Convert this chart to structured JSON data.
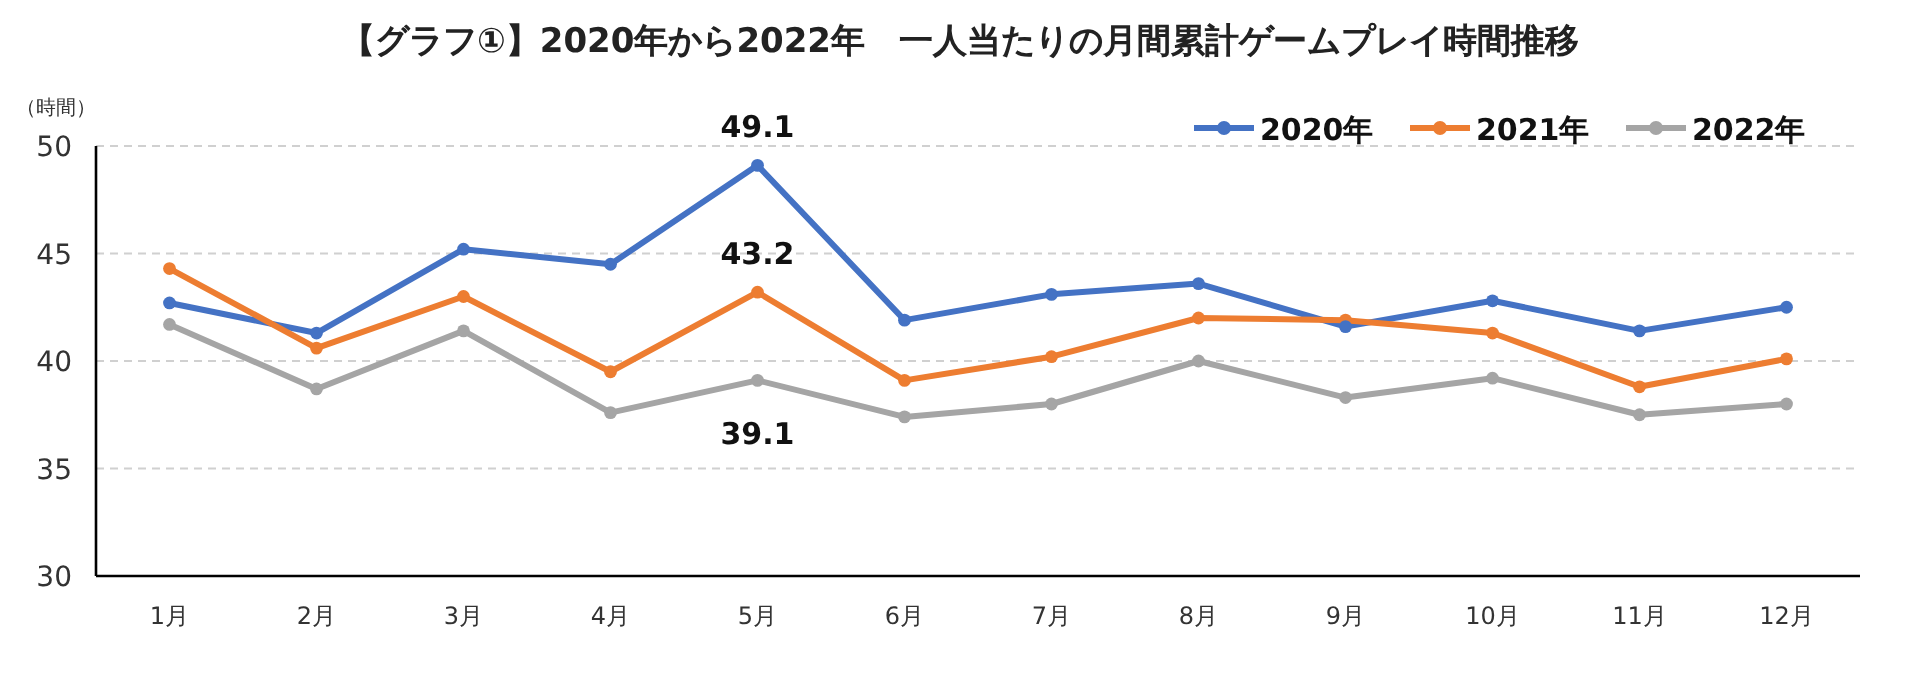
{
  "chart_data": {
    "type": "line",
    "title": "【グラフ①】2020年から2022年　一人当たりの月間累計ゲームプレイ時間推移",
    "ylabel": "（時間）",
    "categories": [
      "1月",
      "2月",
      "3月",
      "4月",
      "5月",
      "6月",
      "7月",
      "8月",
      "9月",
      "10月",
      "11月",
      "12月"
    ],
    "ylim": [
      30,
      50
    ],
    "yticks": [
      30,
      35,
      40,
      45,
      50
    ],
    "grid": "y",
    "legend": "top right",
    "marker": "circle",
    "line_style": "solid",
    "series": [
      {
        "name": "2020年",
        "color": "#4472c4",
        "values": [
          42.7,
          41.3,
          45.2,
          44.5,
          49.1,
          41.9,
          43.1,
          43.6,
          41.6,
          42.8,
          41.4,
          42.5
        ],
        "value_labels": [
          null,
          null,
          null,
          null,
          "49.1",
          null,
          null,
          null,
          null,
          null,
          null,
          null
        ]
      },
      {
        "name": "2021年",
        "color": "#ed7d31",
        "values": [
          44.3,
          40.6,
          43.0,
          39.5,
          43.2,
          39.1,
          40.2,
          42.0,
          41.9,
          41.3,
          38.8,
          40.1
        ],
        "value_labels": [
          null,
          null,
          null,
          null,
          "43.2",
          null,
          null,
          null,
          null,
          null,
          null,
          null
        ]
      },
      {
        "name": "2022年",
        "color": "#a5a5a5",
        "values": [
          41.7,
          38.7,
          41.4,
          37.6,
          39.1,
          37.4,
          38.0,
          40.0,
          38.3,
          39.2,
          37.5,
          38.0
        ],
        "value_labels": [
          null,
          null,
          null,
          null,
          "39.1",
          null,
          null,
          null,
          null,
          null,
          null,
          null
        ]
      }
    ]
  }
}
